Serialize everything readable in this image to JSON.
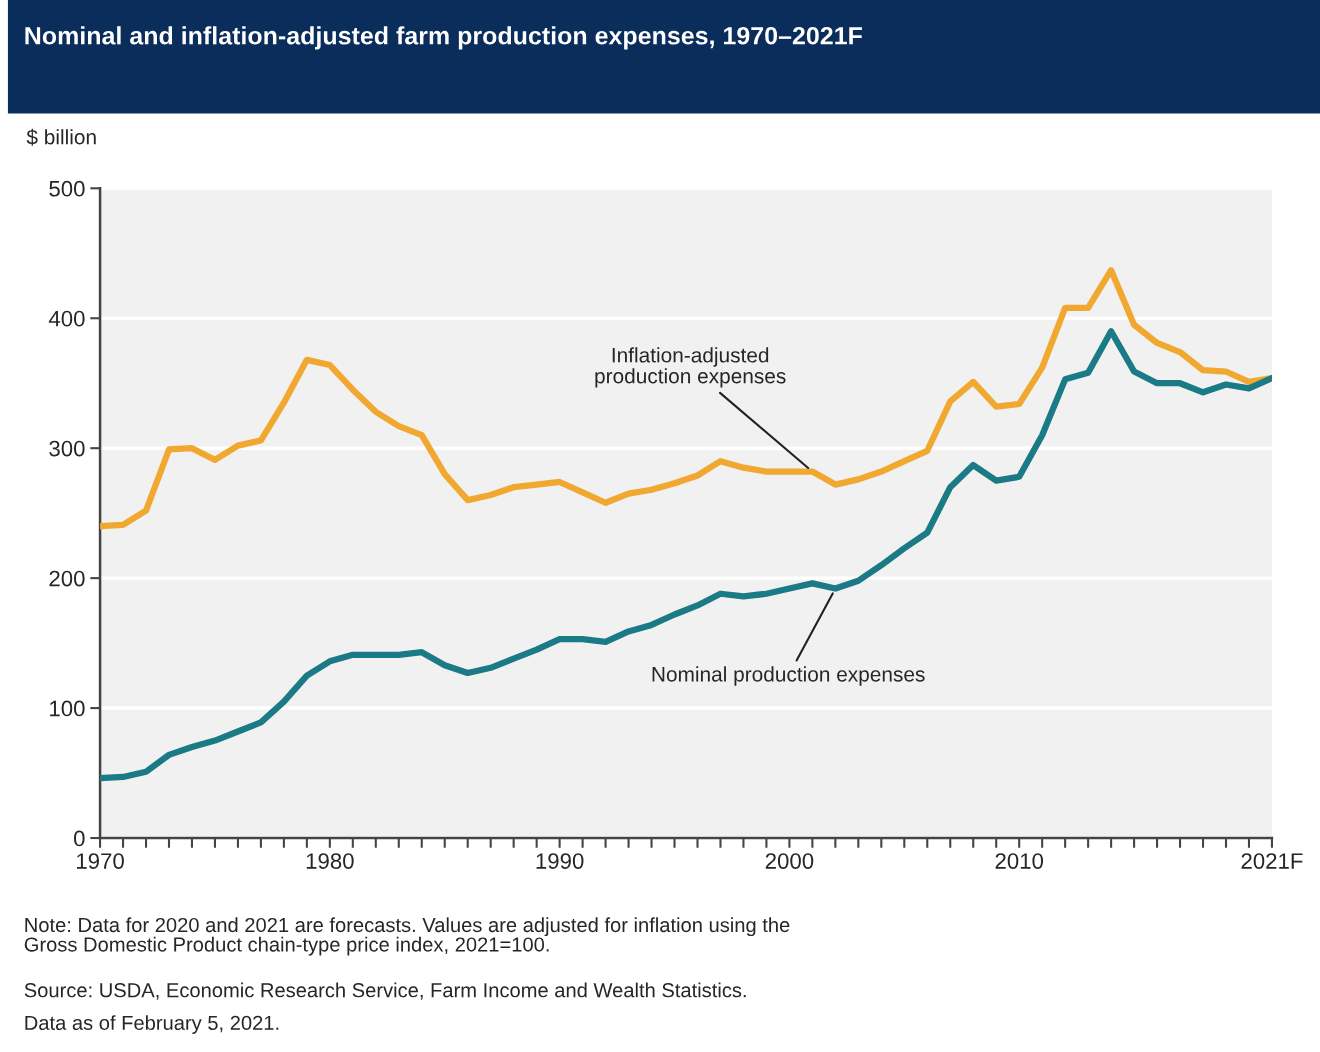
{
  "chart_data": {
    "type": "line",
    "title": "Nominal and inflation-adjusted farm production expenses, 1970–2021F",
    "ylabel": "$ billion",
    "x": [
      1970,
      1971,
      1972,
      1973,
      1974,
      1975,
      1976,
      1977,
      1978,
      1979,
      1980,
      1981,
      1982,
      1983,
      1984,
      1985,
      1986,
      1987,
      1988,
      1989,
      1990,
      1991,
      1992,
      1993,
      1994,
      1995,
      1996,
      1997,
      1998,
      1999,
      2000,
      2001,
      2002,
      2003,
      2004,
      2005,
      2006,
      2007,
      2008,
      2009,
      2010,
      2011,
      2012,
      2013,
      2014,
      2015,
      2016,
      2017,
      2018,
      2019,
      2020,
      2021
    ],
    "series": [
      {
        "color": "#f0a830",
        "values": [
          240,
          241,
          252,
          299,
          300,
          291,
          302,
          306,
          335,
          368,
          364,
          345,
          328,
          317,
          310,
          280,
          260,
          264,
          270,
          272,
          274,
          266,
          258,
          265,
          268,
          273,
          279,
          290,
          285,
          282,
          282,
          282,
          272,
          276,
          282,
          290,
          298,
          336,
          351,
          332,
          334,
          362,
          408,
          408,
          437,
          395,
          381,
          374,
          360,
          359,
          351,
          354
        ]
      },
      {
        "color": "#1a7a85",
        "values": [
          46,
          47,
          51,
          64,
          70,
          75,
          82,
          89,
          105,
          125,
          136,
          141,
          141,
          141,
          143,
          133,
          127,
          131,
          138,
          145,
          153,
          153,
          151,
          159,
          164,
          172,
          179,
          188,
          186,
          188,
          192,
          196,
          192,
          198,
          210,
          223,
          235,
          270,
          287,
          275,
          278,
          310,
          353,
          358,
          390,
          359,
          350,
          350,
          343,
          349,
          346,
          354
        ]
      }
    ],
    "xlim": [
      1970,
      2021
    ],
    "xticks": [
      1970,
      {
        "value": 1971,
        "label": null
      },
      {
        "value": 1972,
        "label": null
      },
      {
        "value": 1973,
        "label": null
      },
      {
        "value": 1974,
        "label": null
      },
      {
        "value": 1975,
        "label": null
      },
      {
        "value": 1976,
        "label": null
      },
      {
        "value": 1977,
        "label": null
      },
      {
        "value": 1978,
        "label": null
      },
      {
        "value": 1979,
        "label": null
      },
      1980,
      {
        "value": 1981,
        "label": null
      },
      {
        "value": 1982,
        "label": null
      },
      {
        "value": 1983,
        "label": null
      },
      {
        "value": 1984,
        "label": null
      },
      {
        "value": 1985,
        "label": null
      },
      {
        "value": 1986,
        "label": null
      },
      {
        "value": 1987,
        "label": null
      },
      {
        "value": 1988,
        "label": null
      },
      {
        "value": 1989,
        "label": null
      },
      1990,
      {
        "value": 1991,
        "label": null
      },
      {
        "value": 1992,
        "label": null
      },
      {
        "value": 1993,
        "label": null
      },
      {
        "value": 1994,
        "label": null
      },
      {
        "value": 1995,
        "label": null
      },
      {
        "value": 1996,
        "label": null
      },
      {
        "value": 1997,
        "label": null
      },
      {
        "value": 1998,
        "label": null
      },
      {
        "value": 1999,
        "label": null
      },
      2000,
      {
        "value": 2001,
        "label": null
      },
      {
        "value": 2002,
        "label": null
      },
      {
        "value": 2003,
        "label": null
      },
      {
        "value": 2004,
        "label": null
      },
      {
        "value": 2005,
        "label": null
      },
      {
        "value": 2006,
        "label": null
      },
      {
        "value": 2007,
        "label": null
      },
      {
        "value": 2008,
        "label": null
      },
      {
        "value": 2009,
        "label": null
      },
      2010,
      {
        "value": 2011,
        "label": null
      },
      {
        "value": 2012,
        "label": null
      },
      {
        "value": 2013,
        "label": null
      },
      {
        "value": 2014,
        "label": null
      },
      {
        "value": 2015,
        "label": null
      },
      {
        "value": 2016,
        "label": null
      },
      {
        "value": 2017,
        "label": null
      },
      {
        "value": 2018,
        "label": null
      },
      {
        "value": 2019,
        "label": null
      },
      {
        "value": 2020,
        "label": null
      },
      {
        "value": 2021,
        "label": "2021F"
      }
    ],
    "ylim": [
      0,
      500
    ],
    "yticks": [
      0,
      100,
      200,
      300,
      400,
      500
    ],
    "grid": "y",
    "annotations": [
      {
        "text": "Inflation-adjusted\nproduction expenses",
        "x": 2001,
        "y": 282
      },
      {
        "text": "Nominal production expenses",
        "x": 2002,
        "y": 192
      },
      "Note: Data for 2020 and 2021 are forecasts. Values are adjusted for inflation using the\nGross Domestic Product chain-type price index, 2021=100.",
      "Source: USDA, Economic Research Service, Farm Income and Wealth Statistics.",
      "Data as of February 5, 2021."
    ]
  }
}
